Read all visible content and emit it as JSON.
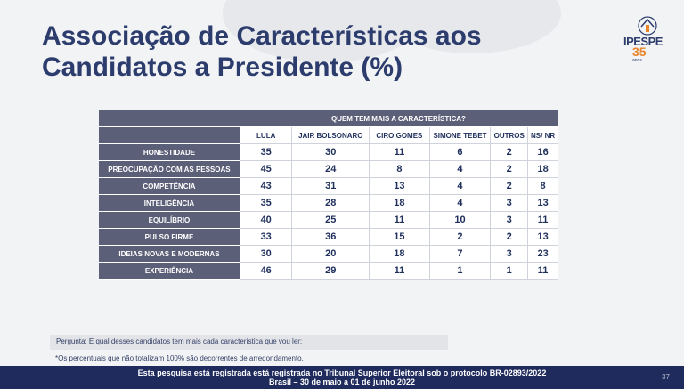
{
  "title": {
    "line1": "Associação de Características aos",
    "line2": "Candidatos a Presidente (%)"
  },
  "logo": {
    "brand": "IPESPE",
    "years": "35",
    "years_label": "anos"
  },
  "table": {
    "group_header": "QUEM TEM MAIS A CARACTERÍSTICA?",
    "columns": [
      "LULA",
      "JAIR BOLSONARO",
      "CIRO GOMES",
      "SIMONE TEBET",
      "OUTROS",
      "NS/ NR"
    ],
    "rows": [
      {
        "label": "HONESTIDADE",
        "values": [
          "35",
          "30",
          "11",
          "6",
          "2",
          "16"
        ]
      },
      {
        "label": "PREOCUPAÇÃO COM AS PESSOAS",
        "values": [
          "45",
          "24",
          "8",
          "4",
          "2",
          "18"
        ]
      },
      {
        "label": "COMPETÊNCIA",
        "values": [
          "43",
          "31",
          "13",
          "4",
          "2",
          "8"
        ]
      },
      {
        "label": "INTELIGÊNCIA",
        "values": [
          "35",
          "28",
          "18",
          "4",
          "3",
          "13"
        ]
      },
      {
        "label": "EQUILÍBRIO",
        "values": [
          "40",
          "25",
          "11",
          "10",
          "3",
          "11"
        ]
      },
      {
        "label": "PULSO FIRME",
        "values": [
          "33",
          "36",
          "15",
          "2",
          "2",
          "13"
        ]
      },
      {
        "label": "IDEIAS NOVAS E MODERNAS",
        "values": [
          "30",
          "20",
          "18",
          "7",
          "3",
          "23"
        ]
      },
      {
        "label": "EXPERIÊNCIA",
        "values": [
          "46",
          "29",
          "11",
          "1",
          "1",
          "11"
        ]
      }
    ]
  },
  "question": "Pergunta:  E qual desses candidatos tem mais cada característica que vou ler:",
  "note": "*Os percentuais que não totalizam 100% são decorrentes de arredondamento.",
  "footer": {
    "line1": "Esta pesquisa está registrada está registrada no Tribunal Superior Eleitoral sob o protocolo BR-02893/2022",
    "line2": "Brasil – 30 de maio a 01 de junho 2022",
    "page": "37"
  },
  "colors": {
    "title": "#2c3c6c",
    "header_bg": "#5c5f78",
    "footer_bg": "#1f2b5c",
    "accent": "#e8842a"
  }
}
